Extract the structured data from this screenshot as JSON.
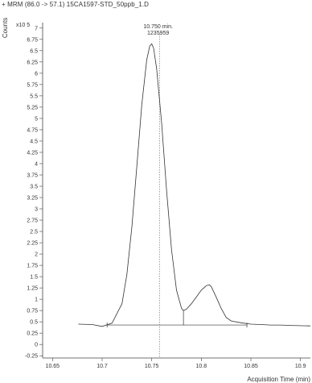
{
  "header": {
    "title": "+ MRM (86.0 -> 57.1) 15CA1597-STD_50ppb_1.D"
  },
  "chart_data": {
    "type": "line",
    "title": "+ MRM (86.0 -> 57.1) 15CA1597-STD_50ppb_1.D",
    "ylabel": "Counts",
    "yscale_label": "x10 5",
    "xlabel": "Acquisition Time (min)",
    "xlim": [
      10.64,
      10.91
    ],
    "ylim": [
      -0.3,
      7.05
    ],
    "x_ticks": [
      10.65,
      10.7,
      10.75,
      10.8,
      10.85,
      10.9
    ],
    "x_tick_labels": [
      "10.65",
      "10.7",
      "10.75",
      "10.8",
      "10.85",
      "10.9"
    ],
    "y_ticks": [
      -0.25,
      0,
      0.25,
      0.5,
      0.75,
      1,
      1.25,
      1.5,
      1.75,
      2,
      2.25,
      2.5,
      2.75,
      3,
      3.25,
      3.5,
      3.75,
      4,
      4.25,
      4.5,
      4.75,
      5,
      5.25,
      5.5,
      5.75,
      6,
      6.25,
      6.5,
      6.75,
      7
    ],
    "y_tick_labels": [
      "-0.25",
      "0",
      "0.25",
      "0.5",
      "0.75",
      "1",
      "1.25",
      "1.5",
      "1.75",
      "2",
      "2.25",
      "2.5",
      "2.75",
      "3",
      "3.25",
      "3.5",
      "3.75",
      "4",
      "4.25",
      "4.5",
      "4.75",
      "5",
      "5.25",
      "5.5",
      "5.75",
      "6",
      "6.25",
      "6.5",
      "6.75",
      "7"
    ],
    "series": [
      {
        "x": [
          10.676,
          10.69,
          10.7,
          10.71,
          10.72,
          10.725,
          10.73,
          10.735,
          10.74,
          10.745,
          10.748,
          10.75,
          10.752,
          10.755,
          10.76,
          10.765,
          10.77,
          10.775,
          10.78,
          10.782,
          10.785,
          10.79,
          10.795,
          10.8,
          10.805,
          10.808,
          10.81,
          10.815,
          10.82,
          10.825,
          10.83,
          10.84,
          10.85,
          10.86,
          10.87,
          10.88,
          10.89,
          10.91
        ],
        "y": [
          0.45,
          0.44,
          0.4,
          0.47,
          0.9,
          1.55,
          2.6,
          3.95,
          5.3,
          6.3,
          6.6,
          6.65,
          6.55,
          6.1,
          4.9,
          3.4,
          2.1,
          1.2,
          0.8,
          0.75,
          0.78,
          0.9,
          1.05,
          1.2,
          1.3,
          1.32,
          1.28,
          1.05,
          0.8,
          0.6,
          0.52,
          0.48,
          0.45,
          0.44,
          0.43,
          0.43,
          0.42,
          0.41
        ]
      }
    ],
    "baseline": {
      "x1": 10.705,
      "x2": 10.846,
      "y": 0.43
    },
    "integration_marker_x": 10.782,
    "peak_marker_x": 10.758,
    "annotations": [
      {
        "x": 10.75,
        "lines": [
          "10.750 min.",
          "1235959"
        ]
      }
    ]
  }
}
